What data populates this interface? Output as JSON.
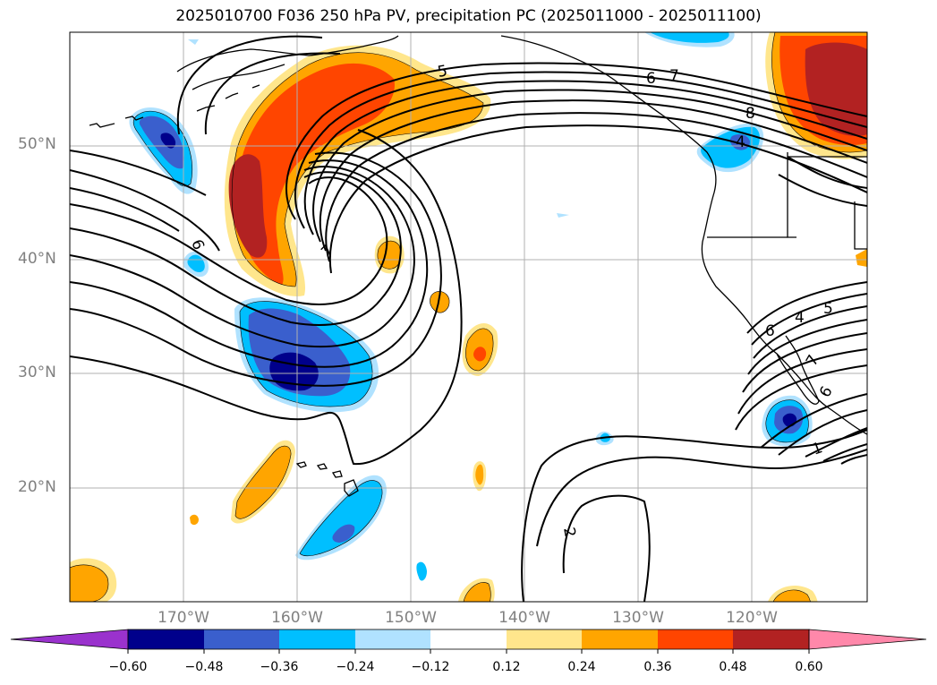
{
  "title": "2025010700 F036 250 hPa PV, precipitation PC (2025011000 - 2025011100)",
  "latitude_labels": [
    "50°N",
    "40°N",
    "30°N",
    "20°N"
  ],
  "longitude_labels": [
    "170°W",
    "160°W",
    "150°W",
    "140°W",
    "130°W",
    "120°W"
  ],
  "colorbar": {
    "tick_labels": [
      "−0.60",
      "−0.48",
      "−0.36",
      "−0.24",
      "−0.12",
      "0.12",
      "0.24",
      "0.36",
      "0.48",
      "0.60"
    ],
    "colors": [
      "#9a32cd",
      "#00008b",
      "#3a5fcd",
      "#00bfff",
      "#b0e2ff",
      "#ffffff",
      "#ffe68c",
      "#ffa500",
      "#ff4500",
      "#b22222",
      "#ff88aa"
    ]
  },
  "contour_labels": [
    "5",
    "6",
    "7",
    "6",
    "7",
    "8",
    "4",
    "6",
    "7",
    "5",
    "4",
    "6",
    "2",
    "1"
  ],
  "colors": {
    "grid": "#b0b0b0",
    "coast": "#000000",
    "contour": "#000000",
    "axis_text": "#808080"
  }
}
